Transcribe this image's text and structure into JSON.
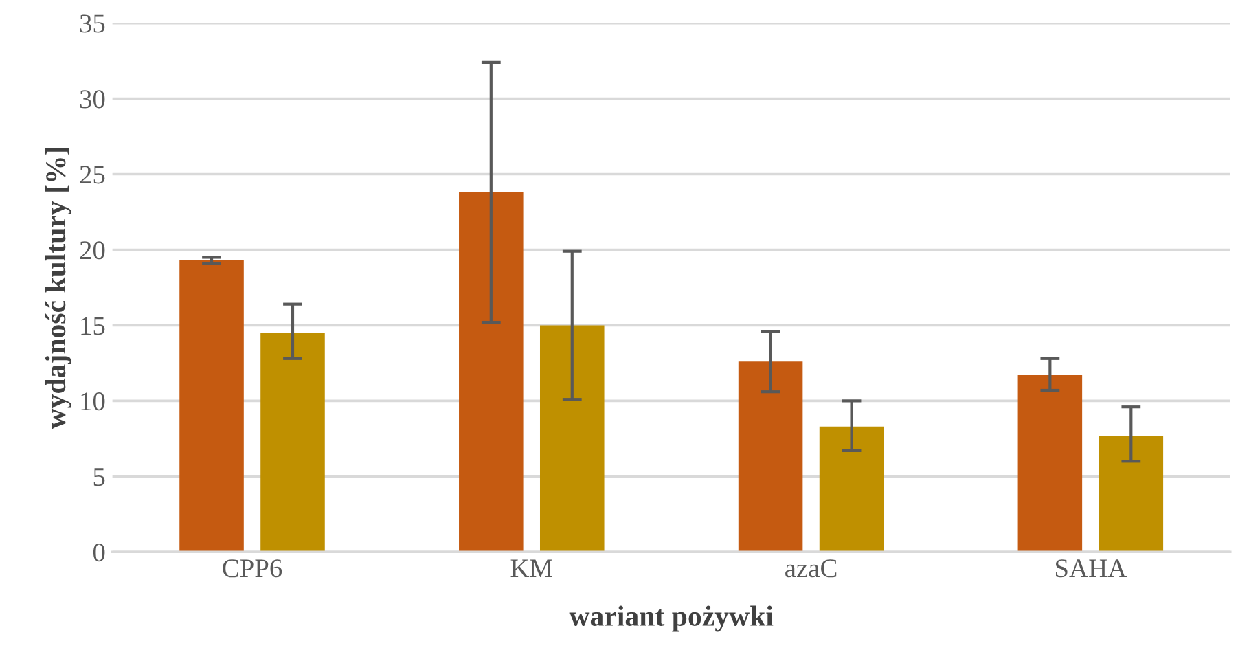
{
  "chart_data": {
    "type": "bar",
    "xlabel": "wariant pożywki",
    "ylabel": "wydajność kultury [%]",
    "categories": [
      "CPP6",
      "KM",
      "azaC",
      "SAHA"
    ],
    "series": [
      {
        "color": "#c55a11",
        "values": [
          19.3,
          23.8,
          12.6,
          11.7
        ],
        "errors": [
          [
            19.1,
            19.5
          ],
          [
            15.2,
            32.4
          ],
          [
            10.6,
            14.6
          ],
          [
            10.7,
            12.8
          ]
        ]
      },
      {
        "color": "#bf9000",
        "values": [
          14.5,
          15.0,
          8.3,
          7.7
        ],
        "errors": [
          [
            12.8,
            16.4
          ],
          [
            10.1,
            19.9
          ],
          [
            6.7,
            10.0
          ],
          [
            6.0,
            9.6
          ]
        ]
      }
    ],
    "ylim": [
      0,
      35
    ],
    "yticks": [
      0,
      5,
      10,
      15,
      20,
      25,
      30,
      35
    ],
    "grid": "y",
    "legend": false
  }
}
